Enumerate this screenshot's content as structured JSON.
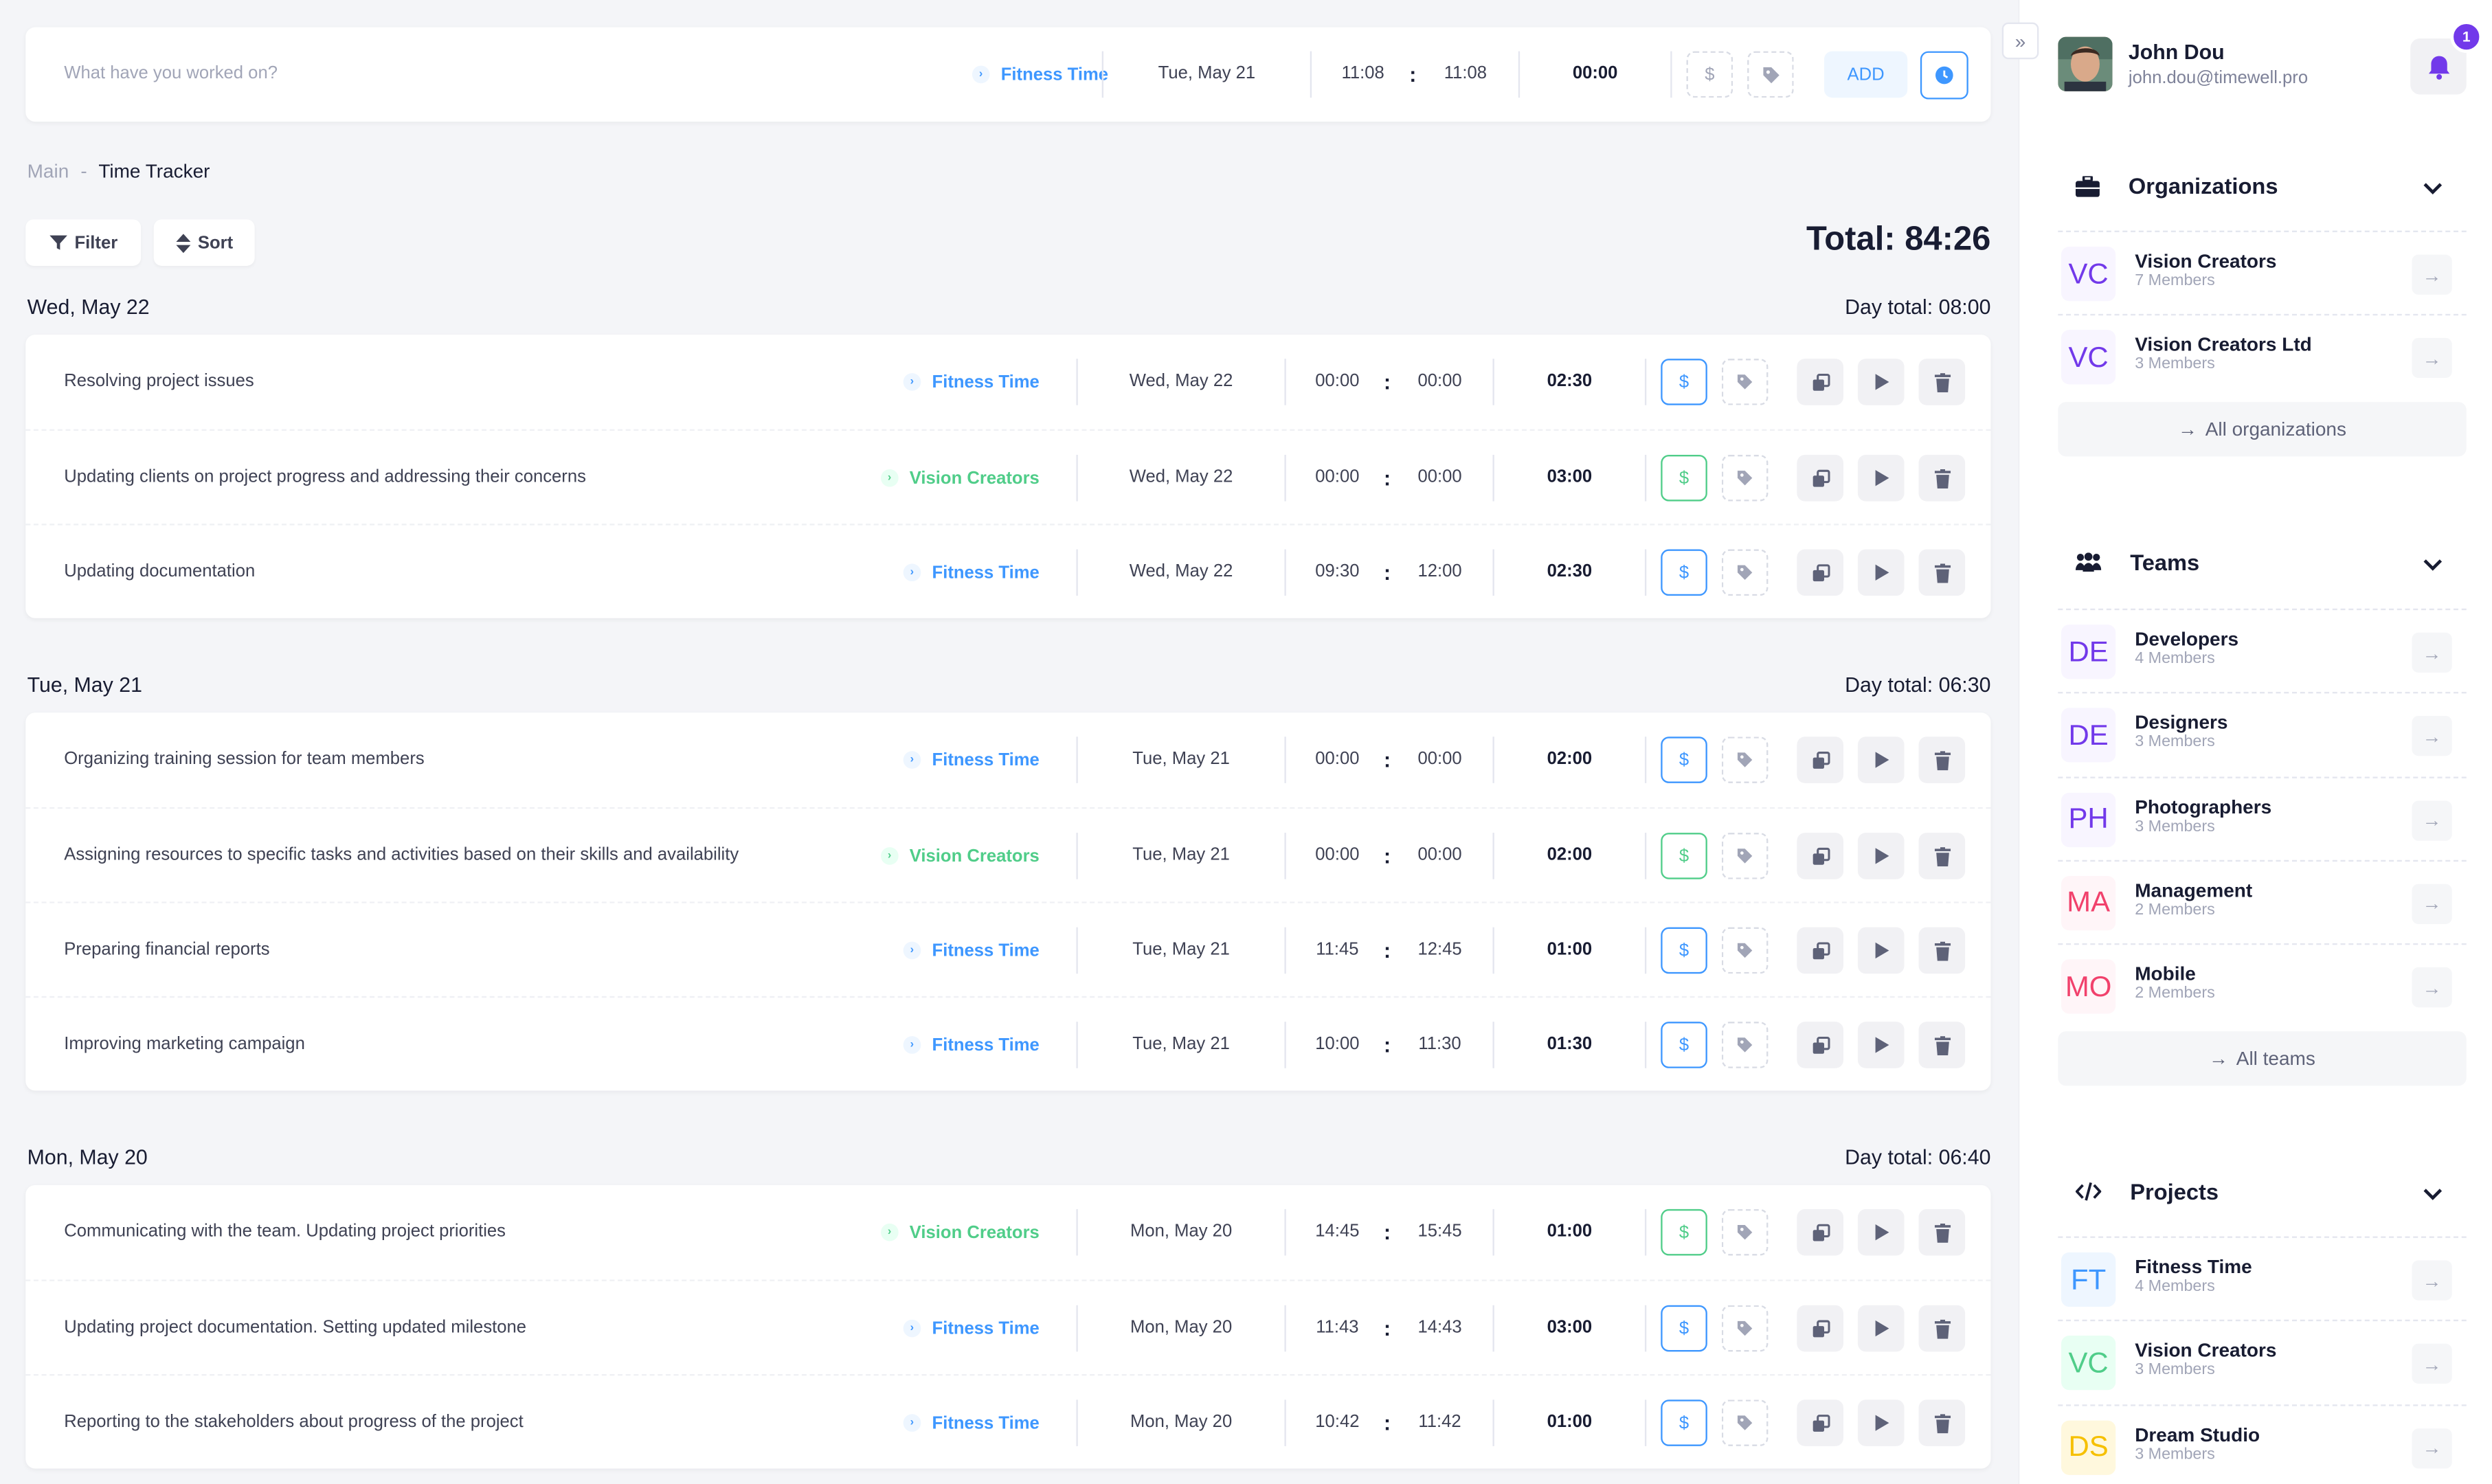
{
  "tracker_bar": {
    "placeholder": "What have you worked on?",
    "project": "Fitness Time",
    "date": "Tue, May 21",
    "start": "11:08",
    "end": "11:08",
    "duration": "00:00",
    "add_label": "ADD",
    "colon": ":"
  },
  "breadcrumb": {
    "root": "Main",
    "sep": "-",
    "current": "Time Tracker"
  },
  "toolbar": {
    "filter_label": "Filter",
    "sort_label": "Sort",
    "total": "Total: 84:26"
  },
  "days": [
    {
      "title": "Wed, May 22",
      "total": "Day total: 08:00",
      "entries": [
        {
          "desc": "Resolving project issues",
          "project": "Fitness Time",
          "color": "blue",
          "date": "Wed, May 22",
          "start": "00:00",
          "end": "00:00",
          "duration": "02:30"
        },
        {
          "desc": "Updating clients on project progress and addressing their concerns",
          "project": "Vision Creators",
          "color": "green",
          "date": "Wed, May 22",
          "start": "00:00",
          "end": "00:00",
          "duration": "03:00"
        },
        {
          "desc": "Updating documentation",
          "project": "Fitness Time",
          "color": "blue",
          "date": "Wed, May 22",
          "start": "09:30",
          "end": "12:00",
          "duration": "02:30"
        }
      ]
    },
    {
      "title": "Tue, May 21",
      "total": "Day total: 06:30",
      "entries": [
        {
          "desc": "Organizing training session for team members",
          "project": "Fitness Time",
          "color": "blue",
          "date": "Tue, May 21",
          "start": "00:00",
          "end": "00:00",
          "duration": "02:00"
        },
        {
          "desc": "Assigning resources to specific tasks and activities based on their skills and availability",
          "project": "Vision Creators",
          "color": "green",
          "date": "Tue, May 21",
          "start": "00:00",
          "end": "00:00",
          "duration": "02:00"
        },
        {
          "desc": "Preparing financial reports",
          "project": "Fitness Time",
          "color": "blue",
          "date": "Tue, May 21",
          "start": "11:45",
          "end": "12:45",
          "duration": "01:00"
        },
        {
          "desc": "Improving marketing campaign",
          "project": "Fitness Time",
          "color": "blue",
          "date": "Tue, May 21",
          "start": "10:00",
          "end": "11:30",
          "duration": "01:30"
        }
      ]
    },
    {
      "title": "Mon, May 20",
      "total": "Day total: 06:40",
      "entries": [
        {
          "desc": "Communicating with the team. Updating project priorities",
          "project": "Vision Creators",
          "color": "green",
          "date": "Mon, May 20",
          "start": "14:45",
          "end": "15:45",
          "duration": "01:00"
        },
        {
          "desc": "Updating project documentation. Setting updated milestone",
          "project": "Fitness Time",
          "color": "blue",
          "date": "Mon, May 20",
          "start": "11:43",
          "end": "14:43",
          "duration": "03:00"
        },
        {
          "desc": "Reporting to the stakeholders about progress of the project",
          "project": "Fitness Time",
          "color": "blue",
          "date": "Mon, May 20",
          "start": "10:42",
          "end": "11:42",
          "duration": "01:00"
        }
      ]
    }
  ],
  "user": {
    "name": "John Dou",
    "email": "john.dou@timewell.pro",
    "notifications": "1"
  },
  "sidebar": {
    "organizations": {
      "title": "Organizations",
      "items": [
        {
          "initials": "VC",
          "name": "Vision Creators",
          "members": "7 Members",
          "color": "purple"
        },
        {
          "initials": "VC",
          "name": "Vision Creators Ltd",
          "members": "3 Members",
          "color": "purple"
        }
      ],
      "all_label": "All organizations"
    },
    "teams": {
      "title": "Teams",
      "items": [
        {
          "initials": "DE",
          "name": "Developers",
          "members": "4 Members",
          "color": "purple"
        },
        {
          "initials": "DE",
          "name": "Designers",
          "members": "3 Members",
          "color": "purple"
        },
        {
          "initials": "PH",
          "name": "Photographers",
          "members": "3 Members",
          "color": "purple"
        },
        {
          "initials": "MA",
          "name": "Management",
          "members": "2 Members",
          "color": "red"
        },
        {
          "initials": "MO",
          "name": "Mobile",
          "members": "2 Members",
          "color": "red"
        }
      ],
      "all_label": "All teams"
    },
    "projects": {
      "title": "Projects",
      "items": [
        {
          "initials": "FT",
          "name": "Fitness Time",
          "members": "4 Members",
          "color": "blue"
        },
        {
          "initials": "VC",
          "name": "Vision Creators",
          "members": "3 Members",
          "color": "green"
        },
        {
          "initials": "DS",
          "name": "Dream Studio",
          "members": "3 Members",
          "color": "yellow"
        }
      ]
    }
  },
  "icons": {
    "billable": "dollar-icon",
    "tag": "tag-icon",
    "duplicate": "copy-icon",
    "play": "play-icon",
    "delete": "trash-icon"
  },
  "colors": {
    "accent": "#3e97ff",
    "green": "#50cd89",
    "purple": "#7239ea",
    "red": "#f1416c",
    "yellow": "#f6c000"
  }
}
